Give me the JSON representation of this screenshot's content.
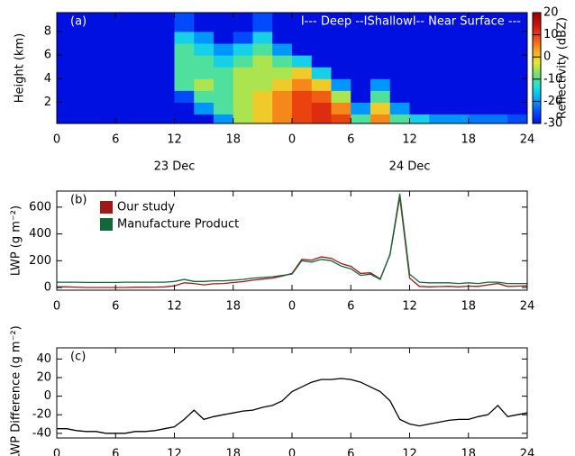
{
  "chart_data": [
    {
      "type": "heatmap",
      "label": "(a)",
      "annotation": "I--- Deep --IShallowI-- Near Surface ---",
      "ylabel": "Height (km)",
      "x_bins": [
        0,
        2,
        4,
        6,
        8,
        10,
        12,
        14,
        16,
        18,
        20,
        22,
        24,
        26,
        28,
        30,
        32,
        34,
        36,
        38,
        40,
        42,
        44,
        46,
        48
      ],
      "y_bins": [
        0.2,
        1,
        2,
        3,
        4,
        5,
        6,
        7,
        8,
        9.6
      ],
      "z": [
        [
          -30,
          -30,
          -30,
          -30,
          -30,
          -30,
          -30,
          -30,
          -20,
          -5,
          0,
          5,
          10,
          12,
          10,
          -10,
          5,
          -10,
          -15,
          -20,
          -20,
          -22,
          -22,
          -25
        ],
        [
          -30,
          -30,
          -30,
          -30,
          -30,
          -30,
          -30,
          -20,
          -10,
          -5,
          0,
          5,
          10,
          12,
          5,
          -20,
          0,
          -20,
          -30,
          -30,
          -30,
          -30,
          -30,
          -30
        ],
        [
          -30,
          -30,
          -30,
          -30,
          -30,
          -30,
          -25,
          -10,
          -10,
          -5,
          0,
          5,
          10,
          8,
          -5,
          -30,
          -10,
          -30,
          -30,
          -30,
          -30,
          -30,
          -30,
          -30
        ],
        [
          -30,
          -30,
          -30,
          -30,
          -30,
          -30,
          -10,
          -5,
          -10,
          -5,
          -5,
          0,
          5,
          0,
          -20,
          -30,
          -20,
          -30,
          -30,
          -30,
          -30,
          -30,
          -30,
          -30
        ],
        [
          -30,
          -30,
          -30,
          -30,
          -30,
          -30,
          -10,
          -10,
          -10,
          -5,
          -5,
          -5,
          0,
          -15,
          -30,
          -30,
          -30,
          -30,
          -30,
          -30,
          -30,
          -30,
          -30,
          -30
        ],
        [
          -30,
          -30,
          -30,
          -30,
          -30,
          -30,
          -10,
          -10,
          -15,
          -10,
          -5,
          -10,
          -15,
          -30,
          -30,
          -30,
          -30,
          -30,
          -30,
          -30,
          -30,
          -30,
          -30,
          -30
        ],
        [
          -30,
          -30,
          -30,
          -30,
          -30,
          -30,
          -10,
          -15,
          -20,
          -15,
          -10,
          -20,
          -30,
          -30,
          -30,
          -30,
          -30,
          -30,
          -30,
          -30,
          -30,
          -30,
          -30,
          -30
        ],
        [
          -30,
          -30,
          -30,
          -30,
          -30,
          -30,
          -15,
          -20,
          -30,
          -25,
          -15,
          -30,
          -30,
          -30,
          -30,
          -30,
          -30,
          -30,
          -30,
          -30,
          -30,
          -30,
          -30,
          -30
        ],
        [
          -30,
          -30,
          -30,
          -30,
          -30,
          -30,
          -25,
          -30,
          -30,
          -30,
          -25,
          -30,
          -30,
          -30,
          -30,
          -30,
          -30,
          -30,
          -30,
          -30,
          -30,
          -30,
          -30,
          -30
        ]
      ],
      "xlim": [
        0,
        48
      ],
      "ylim": [
        0.2,
        9.6
      ],
      "xticks": [
        0,
        6,
        12,
        18,
        {
          "value": 24,
          "label": "0"
        },
        {
          "value": 30,
          "label": "6"
        },
        {
          "value": 36,
          "label": "12"
        },
        {
          "value": 42,
          "label": "18"
        },
        {
          "value": 48,
          "label": "24"
        }
      ],
      "yticks": [
        2,
        4,
        6,
        8
      ],
      "date_labels": [
        {
          "text": "23 Dec",
          "x": 12
        },
        {
          "text": "24 Dec",
          "x": 36
        }
      ],
      "colorbar": {
        "label": "Reflectivity (dBZ)",
        "zlim": [
          -30,
          20
        ],
        "zticks": [
          -30,
          -20,
          -10,
          0,
          10,
          20
        ],
        "colors": [
          "#0010e0",
          "#0050ff",
          "#00a8ff",
          "#20e0e0",
          "#70e070",
          "#e8e830",
          "#f8a020",
          "#f05010",
          "#d01010",
          "#a00000"
        ]
      }
    },
    {
      "type": "line",
      "label": "(b)",
      "ylabel": "LWP (g m⁻²)",
      "x": [
        0,
        1,
        2,
        3,
        4,
        5,
        6,
        7,
        8,
        9,
        10,
        11,
        12,
        13,
        14,
        15,
        16,
        17,
        18,
        19,
        20,
        21,
        22,
        23,
        24,
        25,
        26,
        27,
        28,
        29,
        30,
        31,
        32,
        33,
        34,
        35,
        36,
        37,
        38,
        39,
        40,
        41,
        42,
        43,
        44,
        45,
        46,
        47,
        48
      ],
      "series": [
        {
          "name": "Our study",
          "color": "#a01818",
          "values": [
            5,
            5,
            3,
            0,
            0,
            0,
            0,
            0,
            2,
            2,
            3,
            5,
            12,
            35,
            30,
            20,
            28,
            30,
            37,
            44,
            55,
            63,
            70,
            85,
            105,
            210,
            205,
            228,
            218,
            179,
            158,
            105,
            110,
            65,
            245,
            675,
            70,
            8,
            5,
            7,
            9,
            5,
            10,
            8,
            20,
            30,
            8,
            10,
            12
          ]
        },
        {
          "name": "Manufacture Product",
          "color": "#106838",
          "values": [
            40,
            40,
            40,
            38,
            38,
            38,
            38,
            40,
            40,
            40,
            40,
            40,
            45,
            60,
            45,
            45,
            50,
            50,
            55,
            60,
            70,
            75,
            80,
            90,
            100,
            200,
            190,
            210,
            200,
            160,
            140,
            90,
            100,
            60,
            250,
            700,
            100,
            40,
            35,
            35,
            35,
            30,
            35,
            30,
            40,
            40,
            30,
            30,
            30
          ]
        }
      ],
      "xlim": [
        0,
        48
      ],
      "ylim": [
        -20,
        720
      ],
      "xticks": [
        0,
        6,
        12,
        18,
        {
          "value": 24,
          "label": "0"
        },
        {
          "value": 30,
          "label": "6"
        },
        {
          "value": 36,
          "label": "12"
        },
        {
          "value": 42,
          "label": "18"
        },
        {
          "value": 48,
          "label": "24"
        }
      ],
      "yticks": [
        0,
        200,
        400,
        600
      ],
      "legend": "upper-left"
    },
    {
      "type": "line",
      "label": "(c)",
      "ylabel": "LWP Difference (g m⁻²)",
      "x": [
        0,
        1,
        2,
        3,
        4,
        5,
        6,
        7,
        8,
        9,
        10,
        11,
        12,
        13,
        14,
        15,
        16,
        17,
        18,
        19,
        20,
        21,
        22,
        23,
        24,
        25,
        26,
        27,
        28,
        29,
        30,
        31,
        32,
        33,
        34,
        35,
        36,
        37,
        38,
        39,
        40,
        41,
        42,
        43,
        44,
        45,
        46,
        47,
        48
      ],
      "series": [
        {
          "color": "#000000",
          "values": [
            -35,
            -35,
            -37,
            -38,
            -38,
            -40,
            -40,
            -40,
            -38,
            -38,
            -37,
            -35,
            -33,
            -25,
            -15,
            -25,
            -22,
            -20,
            -18,
            -16,
            -15,
            -12,
            -10,
            -5,
            5,
            10,
            15,
            18,
            18,
            19,
            18,
            15,
            10,
            5,
            -5,
            -25,
            -30,
            -32,
            -30,
            -28,
            -26,
            -25,
            -25,
            -22,
            -20,
            -10,
            -22,
            -20,
            -18
          ]
        }
      ],
      "xlim": [
        0,
        48
      ],
      "ylim": [
        -45,
        52
      ],
      "xticks": [
        0,
        6,
        12,
        18,
        {
          "value": 24,
          "label": "0"
        },
        {
          "value": 30,
          "label": "6"
        },
        {
          "value": 36,
          "label": "12"
        },
        {
          "value": 42,
          "label": "18"
        },
        {
          "value": 48,
          "label": "24"
        }
      ],
      "yticks": [
        -40,
        -20,
        0,
        20,
        40
      ]
    }
  ]
}
